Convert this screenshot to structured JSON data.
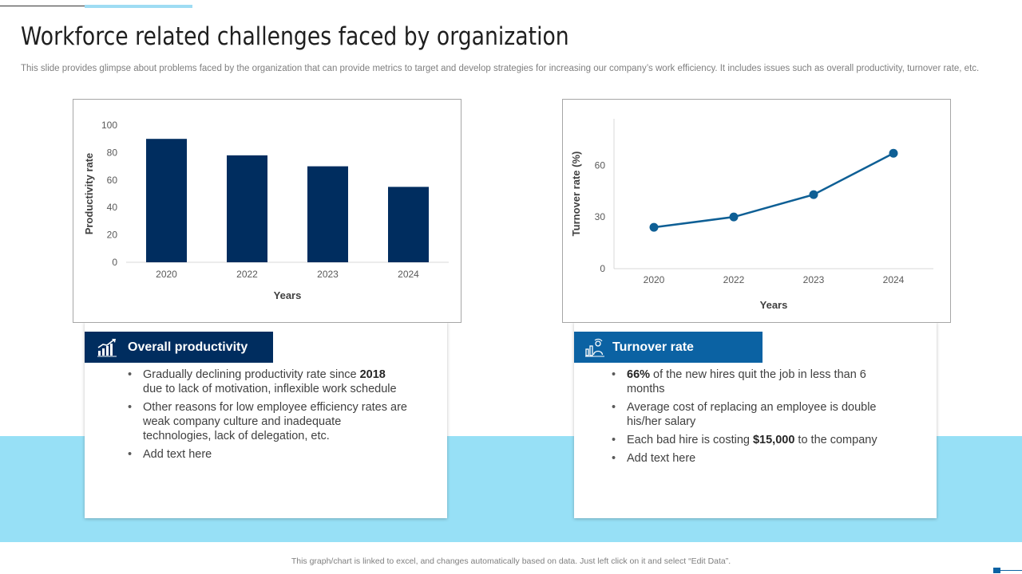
{
  "slide": {
    "title": "Workforce related challenges faced by organization",
    "subtitle": "This slide provides glimpse about problems faced by the organization that can provide metrics to target and develop strategies for increasing our company’s work efficiency. It includes issues such as overall productivity, turnover rate, etc.",
    "footer": "This graph/chart is linked to excel, and changes automatically based on data. Just left click on it and select “Edit Data”."
  },
  "colors": {
    "bar_fill": "#002d5f",
    "line_stroke": "#0e5f95",
    "label_left_bg": "#002d5f",
    "label_right_bg": "#0b62a3",
    "band": "#97e0f6"
  },
  "chart_data": [
    {
      "type": "bar",
      "categories": [
        "2020",
        "2022",
        "2023",
        "2024"
      ],
      "values": [
        90,
        78,
        70,
        55
      ],
      "xlabel": "Years",
      "ylabel": "Productivity rate",
      "ylim": [
        0,
        100
      ],
      "yticks": [
        0,
        20,
        40,
        60,
        80,
        100
      ],
      "grid": false
    },
    {
      "type": "line",
      "categories": [
        "2020",
        "2022",
        "2023",
        "2024"
      ],
      "values": [
        24,
        30,
        43,
        67
      ],
      "xlabel": "Years",
      "ylabel": "Turnover rate (%)",
      "ylim": [
        0,
        87
      ],
      "yticks": [
        0,
        30,
        60
      ],
      "grid": false,
      "markers": true
    }
  ],
  "panels": {
    "left": {
      "heading": "Overall productivity",
      "icon": "growth-chart-icon",
      "bullets": [
        {
          "before": "Gradually declining productivity rate since ",
          "bold": "2018",
          "after": " due to lack of motivation, inflexible work schedule"
        },
        {
          "before": "Other reasons for low employee efficiency rates are weak company culture and inadequate technologies, lack of delegation, etc.",
          "bold": "",
          "after": ""
        },
        {
          "before": "Add text here",
          "bold": "",
          "after": ""
        }
      ]
    },
    "right": {
      "heading": "Turnover rate",
      "icon": "employee-turnover-icon",
      "bullets": [
        {
          "before": "",
          "bold": "66%",
          "after": " of the new hires quit the job in less than 6 months"
        },
        {
          "before": "Average cost of replacing an employee is double his/her salary",
          "bold": "",
          "after": ""
        },
        {
          "before": "Each bad hire is costing ",
          "bold": "$15,000",
          "after": " to the company"
        },
        {
          "before": "Add text here",
          "bold": "",
          "after": ""
        }
      ]
    }
  }
}
